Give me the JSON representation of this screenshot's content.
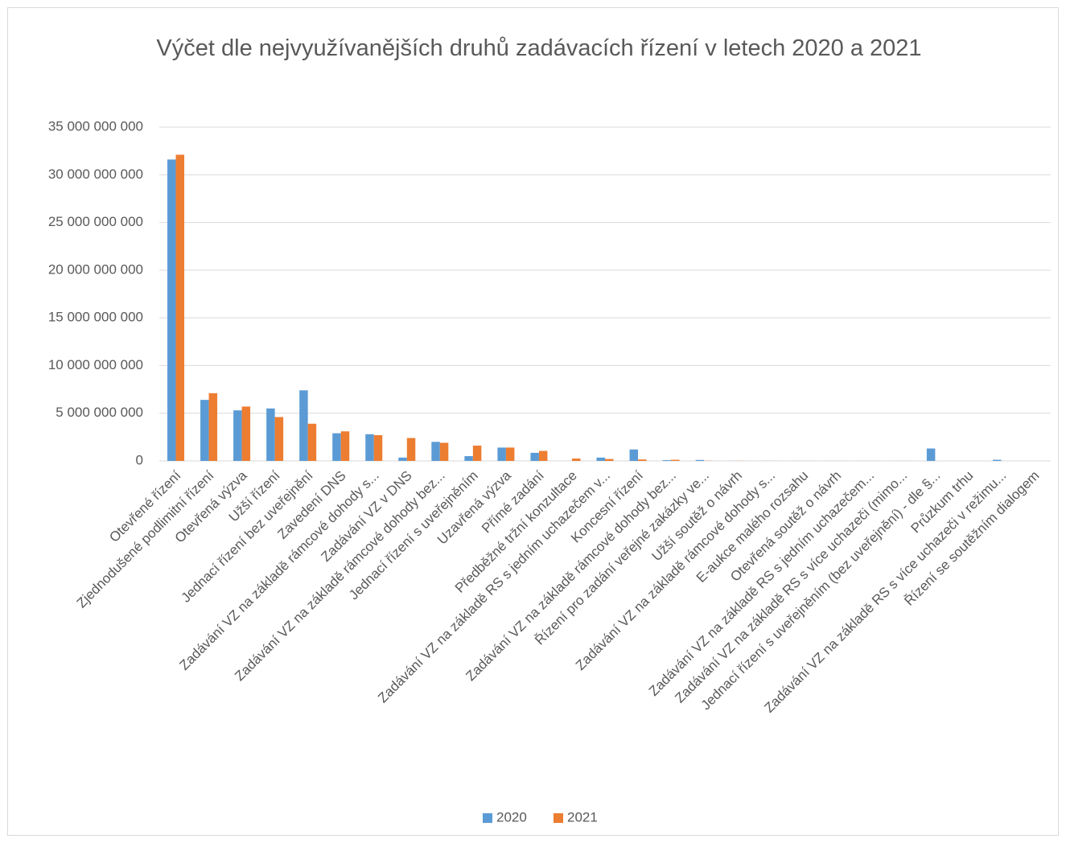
{
  "chart_data": {
    "type": "bar",
    "title": "Výčet dle nejvyužívanějších druhů zadávacích řízení v letech 2020 a 2021",
    "categories": [
      "Otevřené řízení",
      "Zjednodušené podlimitní řízení",
      "Otevřená výzva",
      "Užší řízení",
      "Jednací řízení bez uveřejnění",
      "Zavedení DNS",
      "Zadávání VZ na základě rámcové dohody s...",
      "Zadávání VZ v DNS",
      "Zadávání VZ na základě rámcové dohody bez...",
      "Jednací řízení s uveřejněním",
      "Uzavřená výzva",
      "Přímé zadání",
      "Předběžné tržní konzultace",
      "Zadávání VZ na základě RS s jedním uchazečem v...",
      "Koncesní řízení",
      "Zadávání VZ na základě rámcové dohody bez...",
      "Řízení pro zadání veřejné zakázky ve...",
      "Užší soutěž o návrh",
      "Zadávání VZ na základě rámcové dohody s...",
      "E-aukce malého rozsahu",
      "Otevřená soutěž o návrh",
      "Zadávání VZ na základě RS s jedním uchazečem...",
      "Zadávání VZ na základě RS s více uchazeči (mimo...",
      "Jednací řízení s uveřejněním (bez uveřejnění) - dle §...",
      "Průzkum trhu",
      "Zadávání VZ na základě RS s více uchazeči v režimu...",
      "Řízení se soutěžním dialogem"
    ],
    "series": [
      {
        "name": "2020",
        "color": "#5b9bd5",
        "values": [
          31600000000,
          6400000000,
          5300000000,
          5500000000,
          7400000000,
          2900000000,
          2800000000,
          350000000,
          2000000000,
          500000000,
          1400000000,
          850000000,
          0,
          350000000,
          1200000000,
          80000000,
          100000000,
          10000000,
          10000000,
          5000000,
          5000000,
          5000000,
          5000000,
          1300000000,
          0,
          120000000,
          0
        ]
      },
      {
        "name": "2021",
        "color": "#ed7d31",
        "values": [
          32100000000,
          7100000000,
          5700000000,
          4600000000,
          3900000000,
          3100000000,
          2700000000,
          2400000000,
          1900000000,
          1600000000,
          1400000000,
          1050000000,
          250000000,
          200000000,
          150000000,
          120000000,
          20000000,
          10000000,
          5000000,
          5000000,
          5000000,
          5000000,
          5000000,
          0,
          0,
          0,
          0
        ]
      }
    ],
    "ylim": [
      0,
      35000000000
    ],
    "yticks": [
      0,
      {
        "value": 5000000000,
        "label": "5 000 000 000"
      },
      {
        "value": 10000000000,
        "label": "10 000 000 000"
      },
      {
        "value": 15000000000,
        "label": "15 000 000 000"
      },
      {
        "value": 20000000000,
        "label": "20 000 000 000"
      },
      {
        "value": 25000000000,
        "label": "25 000 000 000"
      },
      {
        "value": 30000000000,
        "label": "30 000 000 000"
      },
      {
        "value": 35000000000,
        "label": "35 000 000 000"
      }
    ],
    "grid": true,
    "legend": "bottom"
  }
}
